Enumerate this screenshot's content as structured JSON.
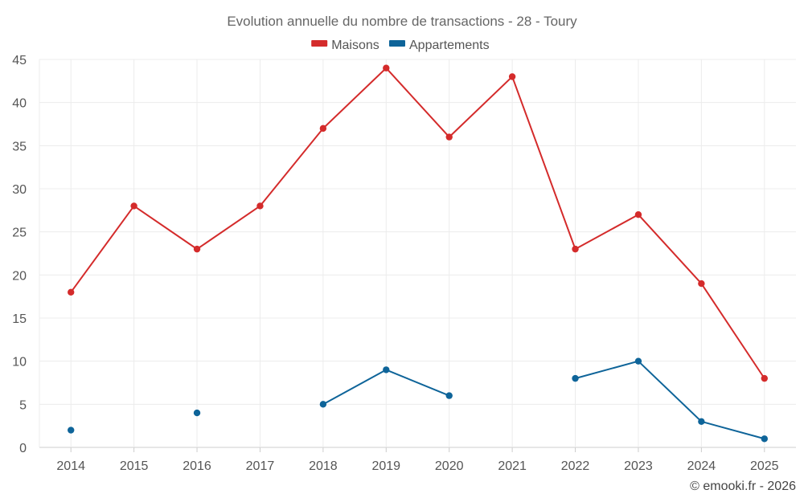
{
  "chart_data": {
    "type": "line",
    "title": "Evolution annuelle du nombre de transactions - 28 - Toury",
    "categories": [
      "2014",
      "2015",
      "2016",
      "2017",
      "2018",
      "2019",
      "2020",
      "2021",
      "2022",
      "2023",
      "2024",
      "2025"
    ],
    "ylim": [
      0,
      45
    ],
    "yticks": [
      0,
      5,
      10,
      15,
      20,
      25,
      30,
      35,
      40,
      45
    ],
    "grid": true,
    "legend_position": "top-center",
    "series": [
      {
        "name": "Maisons",
        "color": "#d42b2b",
        "values": [
          18,
          28,
          23,
          28,
          37,
          44,
          36,
          43,
          23,
          27,
          19,
          8
        ]
      },
      {
        "name": "Appartements",
        "color": "#0e6499",
        "values": [
          2,
          null,
          4,
          null,
          5,
          9,
          6,
          null,
          8,
          10,
          3,
          1
        ]
      }
    ]
  },
  "credit": "© emooki.fr - 2026"
}
